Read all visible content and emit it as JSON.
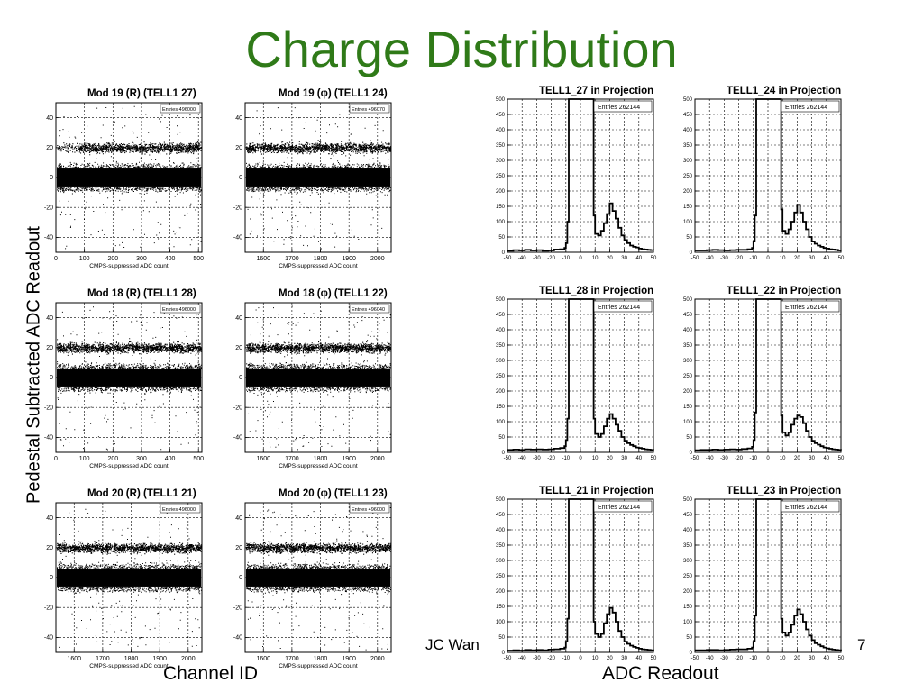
{
  "slide": {
    "title": "Charge Distribution",
    "y_axis_label": "Pedestal Subtracted ADC Readout",
    "x_axis_label_left": "Channel ID",
    "x_axis_label_right": "ADC Readout",
    "footer_text": "JC Wan",
    "page_number": "7"
  },
  "chart_data": [
    {
      "type": "scatter",
      "title": "Mod 19 (R) (TELL1 27)",
      "xlabel": "CMPS-suppressed ADC count",
      "stats": "Entries 496000",
      "xlim": [
        0,
        512
      ],
      "ylim": [
        -50,
        50
      ],
      "x_ticks": [
        0,
        100,
        200,
        300,
        400,
        500
      ],
      "y_ticks": [
        -40,
        -20,
        0,
        20,
        40
      ],
      "grid": true,
      "band_center": 20,
      "sparse_region": "low-channels"
    },
    {
      "type": "scatter",
      "title": "Mod 19 (φ) (TELL1 24)",
      "xlabel": "CMPS-suppressed ADC count",
      "stats": "Entries 496070",
      "xlim": [
        1536,
        2048
      ],
      "ylim": [
        -50,
        50
      ],
      "x_ticks": [
        1600,
        1700,
        1800,
        1900,
        2000
      ],
      "y_ticks": [
        -40,
        -20,
        0,
        20,
        40
      ],
      "grid": true,
      "band_center": 20
    },
    {
      "type": "scatter",
      "title": "Mod 18 (R) (TELL1 28)",
      "xlabel": "CMPS-suppressed ADC count",
      "stats": "Entries 496000",
      "xlim": [
        0,
        512
      ],
      "ylim": [
        -50,
        50
      ],
      "x_ticks": [
        0,
        100,
        200,
        300,
        400,
        500
      ],
      "y_ticks": [
        -40,
        -20,
        0,
        20,
        40
      ],
      "grid": true,
      "band_center": 20
    },
    {
      "type": "scatter",
      "title": "Mod 18 (φ) (TELL1 22)",
      "xlabel": "CMPS-suppressed ADC count",
      "stats": "Entries 496040",
      "xlim": [
        1536,
        2048
      ],
      "ylim": [
        -50,
        50
      ],
      "x_ticks": [
        1600,
        1700,
        1800,
        1900,
        2000
      ],
      "y_ticks": [
        -40,
        -20,
        0,
        20,
        40
      ],
      "grid": true,
      "band_center": 20
    },
    {
      "type": "scatter",
      "title": "Mod 20 (R) (TELL1 21)",
      "xlabel": "CMPS-suppressed ADC count",
      "stats": "Entries 496000",
      "xlim": [
        1536,
        2048
      ],
      "ylim": [
        -50,
        50
      ],
      "x_ticks": [
        1600,
        1700,
        1800,
        1900,
        2000
      ],
      "y_ticks": [
        -40,
        -20,
        0,
        20,
        40
      ],
      "grid": true,
      "band_center": 20
    },
    {
      "type": "scatter",
      "title": "Mod 20 (φ) (TELL1 23)",
      "xlabel": "CMPS-suppressed ADC count",
      "stats": "Entries 496000",
      "xlim": [
        1536,
        2048
      ],
      "ylim": [
        -50,
        50
      ],
      "x_ticks": [
        1600,
        1700,
        1800,
        1900,
        2000
      ],
      "y_ticks": [
        -40,
        -20,
        0,
        20,
        40
      ],
      "grid": true,
      "band_center": 20
    },
    {
      "type": "line",
      "title": "TELL1_27 in Projection",
      "stats": "Entries 262144",
      "xlim": [
        -50,
        50
      ],
      "ylim": [
        0,
        500
      ],
      "x_ticks": [
        -50,
        -40,
        -30,
        -20,
        -10,
        0,
        10,
        20,
        30,
        40,
        50
      ],
      "y_ticks": [
        0,
        50,
        100,
        150,
        200,
        250,
        300,
        350,
        400,
        450,
        500
      ],
      "grid": true,
      "x": [
        -50,
        -46,
        -42,
        -38,
        -34,
        -30,
        -26,
        -22,
        -18,
        -14,
        -11,
        -10,
        -9,
        -8,
        -7,
        7,
        8,
        9,
        10,
        12,
        14,
        16,
        18,
        20,
        22,
        24,
        26,
        28,
        30,
        32,
        34,
        36,
        38,
        40,
        42,
        44,
        46,
        48,
        50
      ],
      "y": [
        5,
        7,
        6,
        8,
        6,
        7,
        5,
        6,
        9,
        10,
        14,
        30,
        100,
        500,
        500,
        500,
        500,
        120,
        60,
        55,
        70,
        95,
        125,
        160,
        135,
        110,
        80,
        55,
        40,
        30,
        22,
        18,
        16,
        12,
        10,
        9,
        8,
        7,
        6
      ]
    },
    {
      "type": "line",
      "title": "TELL1_24 in Projection",
      "stats": "Entries 262144",
      "xlim": [
        -50,
        50
      ],
      "ylim": [
        0,
        500
      ],
      "x_ticks": [
        -50,
        -40,
        -30,
        -20,
        -10,
        0,
        10,
        20,
        30,
        40,
        50
      ],
      "y_ticks": [
        0,
        50,
        100,
        150,
        200,
        250,
        300,
        350,
        400,
        450,
        500
      ],
      "grid": true,
      "x": [
        -50,
        -46,
        -42,
        -38,
        -34,
        -30,
        -26,
        -22,
        -18,
        -14,
        -11,
        -10,
        -9,
        -8,
        -7,
        7,
        8,
        9,
        10,
        12,
        14,
        16,
        18,
        20,
        22,
        24,
        26,
        28,
        30,
        32,
        34,
        36,
        38,
        40,
        42,
        44,
        46,
        48,
        50
      ],
      "y": [
        6,
        6,
        7,
        8,
        7,
        6,
        7,
        8,
        8,
        10,
        14,
        35,
        120,
        500,
        500,
        500,
        500,
        140,
        70,
        60,
        75,
        100,
        130,
        155,
        130,
        100,
        75,
        50,
        35,
        28,
        22,
        18,
        14,
        12,
        10,
        9,
        8,
        6,
        5
      ]
    },
    {
      "type": "line",
      "title": "TELL1_28 in Projection",
      "stats": "Entries 262144",
      "xlim": [
        -50,
        50
      ],
      "ylim": [
        0,
        500
      ],
      "x_ticks": [
        -50,
        -40,
        -30,
        -20,
        -10,
        0,
        10,
        20,
        30,
        40,
        50
      ],
      "y_ticks": [
        0,
        50,
        100,
        150,
        200,
        250,
        300,
        350,
        400,
        450,
        500
      ],
      "grid": true,
      "x": [
        -50,
        -46,
        -42,
        -38,
        -34,
        -30,
        -26,
        -22,
        -18,
        -14,
        -11,
        -10,
        -9,
        -8,
        -7,
        7,
        8,
        9,
        10,
        12,
        14,
        16,
        18,
        20,
        22,
        24,
        26,
        28,
        30,
        32,
        34,
        36,
        38,
        40,
        42,
        44,
        46,
        48,
        50
      ],
      "y": [
        8,
        9,
        8,
        10,
        9,
        10,
        9,
        10,
        12,
        14,
        20,
        40,
        110,
        500,
        500,
        500,
        500,
        110,
        60,
        50,
        60,
        85,
        110,
        125,
        110,
        90,
        70,
        50,
        38,
        30,
        24,
        20,
        16,
        14,
        12,
        10,
        9,
        8,
        7
      ]
    },
    {
      "type": "line",
      "title": "TELL1_22 in Projection",
      "stats": "Entries 262144",
      "xlim": [
        -50,
        50
      ],
      "ylim": [
        0,
        500
      ],
      "x_ticks": [
        -50,
        -40,
        -30,
        -20,
        -10,
        0,
        10,
        20,
        30,
        40,
        50
      ],
      "y_ticks": [
        0,
        50,
        100,
        150,
        200,
        250,
        300,
        350,
        400,
        450,
        500
      ],
      "grid": true,
      "x": [
        -50,
        -46,
        -42,
        -38,
        -34,
        -30,
        -26,
        -22,
        -18,
        -14,
        -11,
        -10,
        -9,
        -8,
        -7,
        7,
        8,
        9,
        10,
        12,
        14,
        16,
        18,
        20,
        22,
        24,
        26,
        28,
        30,
        32,
        34,
        36,
        38,
        40,
        42,
        44,
        46,
        48,
        50
      ],
      "y": [
        7,
        8,
        8,
        9,
        8,
        9,
        10,
        9,
        11,
        13,
        18,
        40,
        130,
        500,
        500,
        500,
        500,
        120,
        65,
        55,
        65,
        90,
        110,
        120,
        115,
        95,
        70,
        50,
        38,
        30,
        25,
        20,
        16,
        14,
        12,
        10,
        9,
        8,
        7
      ]
    },
    {
      "type": "line",
      "title": "TELL1_21 in Projection",
      "stats": "Entries 262144",
      "xlim": [
        -50,
        50
      ],
      "ylim": [
        0,
        500
      ],
      "x_ticks": [
        -50,
        -40,
        -30,
        -20,
        -10,
        0,
        10,
        20,
        30,
        40,
        50
      ],
      "y_ticks": [
        0,
        50,
        100,
        150,
        200,
        250,
        300,
        350,
        400,
        450,
        500
      ],
      "grid": true,
      "x": [
        -50,
        -46,
        -42,
        -38,
        -34,
        -30,
        -26,
        -22,
        -18,
        -14,
        -11,
        -10,
        -9,
        -8,
        -7,
        7,
        8,
        9,
        10,
        12,
        14,
        16,
        18,
        20,
        22,
        24,
        26,
        28,
        30,
        32,
        34,
        36,
        38,
        40,
        42,
        44,
        46,
        48,
        50
      ],
      "y": [
        6,
        7,
        6,
        8,
        7,
        8,
        7,
        9,
        10,
        12,
        16,
        35,
        110,
        500,
        500,
        500,
        500,
        100,
        60,
        50,
        60,
        95,
        125,
        145,
        130,
        100,
        70,
        50,
        35,
        28,
        22,
        18,
        15,
        12,
        10,
        9,
        8,
        7,
        6
      ]
    },
    {
      "type": "line",
      "title": "TELL1_23 in Projection",
      "stats": "Entries 262144",
      "xlim": [
        -50,
        50
      ],
      "ylim": [
        0,
        500
      ],
      "x_ticks": [
        -50,
        -40,
        -30,
        -20,
        -10,
        0,
        10,
        20,
        30,
        40,
        50
      ],
      "y_ticks": [
        0,
        50,
        100,
        150,
        200,
        250,
        300,
        350,
        400,
        450,
        500
      ],
      "grid": true,
      "x": [
        -50,
        -46,
        -42,
        -38,
        -34,
        -30,
        -26,
        -22,
        -18,
        -14,
        -11,
        -10,
        -9,
        -8,
        -7,
        7,
        8,
        9,
        10,
        12,
        14,
        16,
        18,
        20,
        22,
        24,
        26,
        28,
        30,
        32,
        34,
        36,
        38,
        40,
        42,
        44,
        46,
        48,
        50
      ],
      "y": [
        7,
        7,
        8,
        8,
        7,
        8,
        9,
        10,
        10,
        12,
        16,
        35,
        120,
        500,
        500,
        500,
        500,
        110,
        65,
        55,
        65,
        90,
        120,
        140,
        125,
        100,
        75,
        55,
        40,
        30,
        25,
        20,
        16,
        13,
        11,
        9,
        8,
        7,
        6
      ]
    }
  ]
}
